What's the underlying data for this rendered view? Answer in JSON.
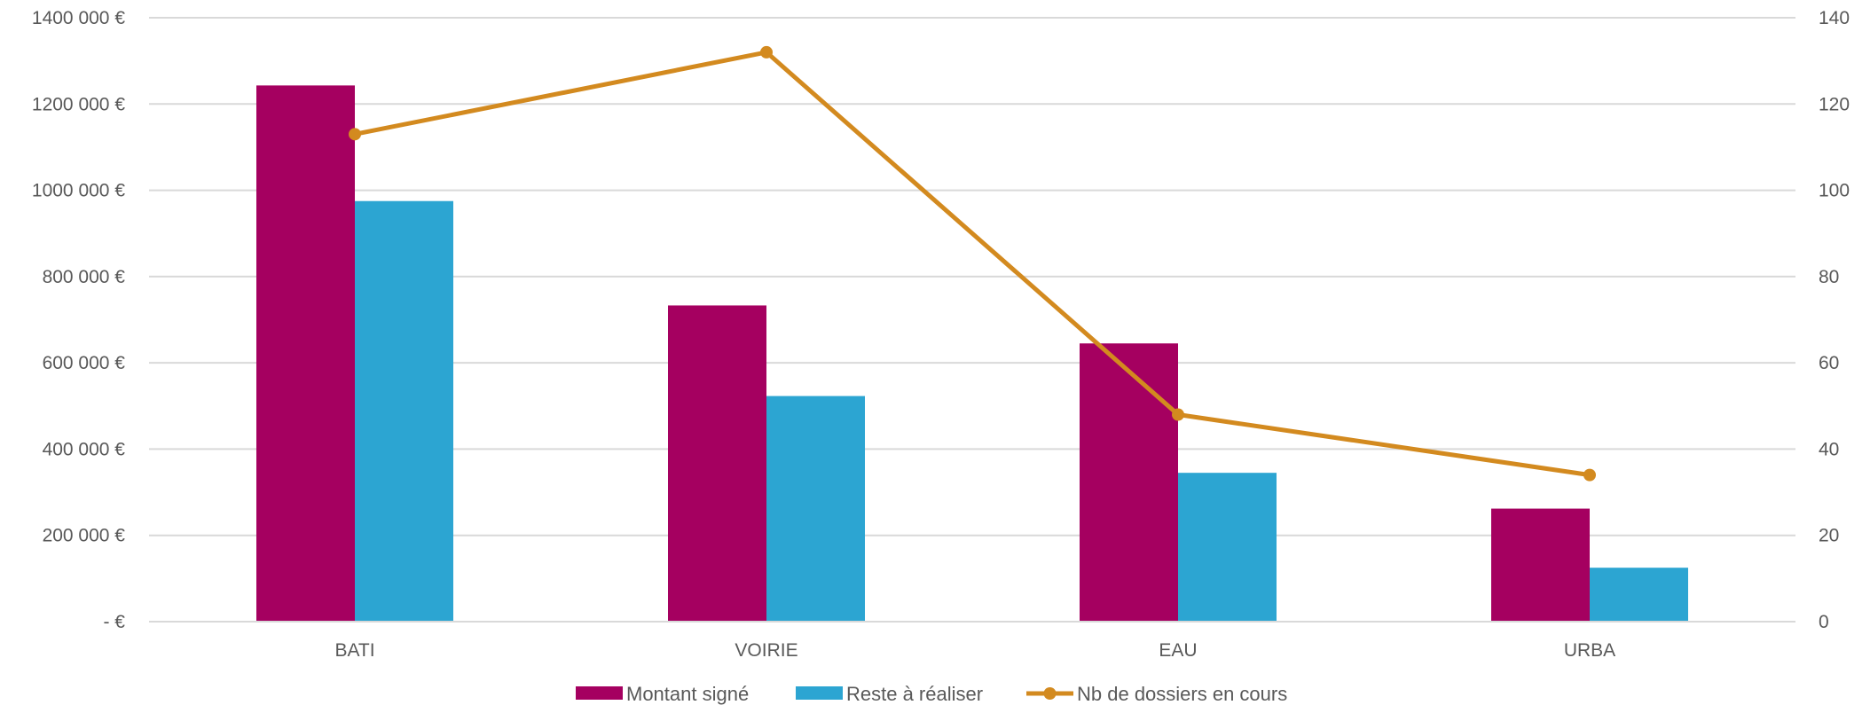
{
  "chart_data": {
    "type": "bar",
    "categories": [
      "BATI",
      "VOIRIE",
      "EAU",
      "URBA"
    ],
    "series": [
      {
        "name": "Montant signé",
        "type": "bar",
        "axis": "left",
        "color": "#A50060",
        "values": [
          1243000,
          733000,
          645000,
          262000
        ]
      },
      {
        "name": "Reste à réaliser",
        "type": "bar",
        "axis": "left",
        "color": "#2CA5D2",
        "values": [
          975000,
          523000,
          345000,
          125000
        ]
      },
      {
        "name": "Nb de dossiers en cours",
        "type": "line",
        "axis": "right",
        "color": "#D38A1F",
        "values": [
          113,
          132,
          48,
          34
        ]
      }
    ],
    "y_left": {
      "range": [
        0,
        1400000
      ],
      "ticks": [
        0,
        200000,
        400000,
        600000,
        800000,
        1000000,
        1200000,
        1400000
      ],
      "tick_labels": [
        "-  €",
        "200 000 €",
        "400 000 €",
        "600 000 €",
        "800 000 €",
        "1000 000 €",
        "1200 000 €",
        "1400 000 €"
      ]
    },
    "y_right": {
      "range": [
        0,
        140
      ],
      "ticks": [
        0,
        20,
        40,
        60,
        80,
        100,
        120,
        140
      ],
      "tick_labels": [
        "0",
        "20",
        "40",
        "60",
        "80",
        "100",
        "120",
        "140"
      ]
    },
    "grid": true,
    "legend_position": "bottom",
    "gridline_color": "#D9D9D9"
  }
}
